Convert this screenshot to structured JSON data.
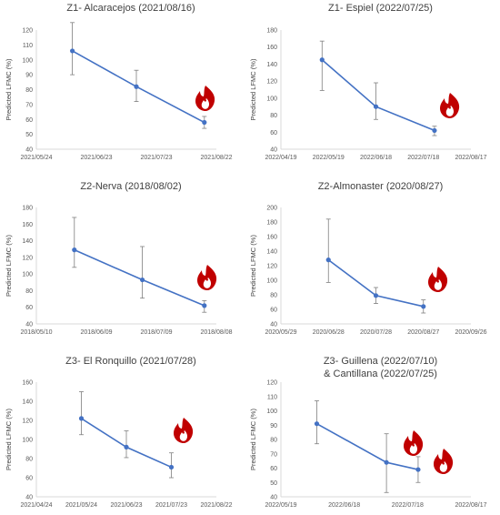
{
  "chart_data": [
    {
      "type": "line",
      "title": "Z1- Alcaracejos (2021/08/16)",
      "ylabel": "Predicted LFMC (%)",
      "xlim": [
        "2021-05-24",
        "2021-08-22"
      ],
      "xticks": [
        "2021/05/24",
        "2021/06/23",
        "2021/07/23",
        "2021/08/22"
      ],
      "ylim": [
        40,
        120
      ],
      "yticks": [
        40,
        50,
        60,
        70,
        80,
        90,
        100,
        110,
        120
      ],
      "x": [
        "2021-06-11",
        "2021-07-13",
        "2021-08-16"
      ],
      "values": [
        106,
        82,
        58
      ],
      "err_low": [
        90,
        72,
        54
      ],
      "err_high": [
        125,
        93,
        62
      ],
      "fire_icons": [
        "fire-icon"
      ],
      "colors": {
        "series": "#4472c4",
        "fire": "#c00000"
      }
    },
    {
      "type": "line",
      "title": "Z1- Espiel (2022/07/25)",
      "ylabel": "Predicted LFMC (%)",
      "xlim": [
        "2022-04-19",
        "2022-08-17"
      ],
      "xticks": [
        "2022/04/19",
        "2022/05/19",
        "2022/06/18",
        "2022/07/18",
        "2022/08/17"
      ],
      "ylim": [
        40,
        180
      ],
      "yticks": [
        40,
        60,
        80,
        100,
        120,
        140,
        160,
        180
      ],
      "x": [
        "2022-05-15",
        "2022-06-18",
        "2022-07-25"
      ],
      "values": [
        145,
        90,
        62
      ],
      "err_low": [
        109,
        75,
        56
      ],
      "err_high": [
        167,
        118,
        67
      ],
      "fire_icons": [
        "fire-icon"
      ],
      "colors": {
        "series": "#4472c4",
        "fire": "#c00000"
      }
    },
    {
      "type": "line",
      "title": "Z2-Nerva (2018/08/02)",
      "ylabel": "Predicted LFMC (%)",
      "xlim": [
        "2018-05-10",
        "2018-08-08"
      ],
      "xticks": [
        "2018/05/10",
        "2018/06/09",
        "2018/07/09",
        "2018/08/08"
      ],
      "ylim": [
        40,
        180
      ],
      "yticks": [
        40,
        60,
        80,
        100,
        120,
        140,
        160,
        180
      ],
      "x": [
        "2018-05-29",
        "2018-07-02",
        "2018-08-02"
      ],
      "values": [
        129,
        93,
        62
      ],
      "err_low": [
        108,
        71,
        54
      ],
      "err_high": [
        168,
        133,
        68
      ],
      "fire_icons": [
        "fire-icon"
      ],
      "colors": {
        "series": "#4472c4",
        "fire": "#c00000"
      }
    },
    {
      "type": "line",
      "title": "Z2-Almonaster (2020/08/27)",
      "ylabel": "Predicted LFMC (%)",
      "xlim": [
        "2020-05-29",
        "2020-09-26"
      ],
      "xticks": [
        "2020/05/29",
        "2020/06/28",
        "2020/07/28",
        "2020/08/27",
        "2020/09/26"
      ],
      "ylim": [
        40,
        200
      ],
      "yticks": [
        40,
        60,
        80,
        100,
        120,
        140,
        160,
        180,
        200
      ],
      "x": [
        "2020-06-28",
        "2020-07-28",
        "2020-08-27"
      ],
      "values": [
        128,
        79,
        64
      ],
      "err_low": [
        97,
        68,
        55
      ],
      "err_high": [
        184,
        90,
        73
      ],
      "fire_icons": [
        "fire-icon"
      ],
      "colors": {
        "series": "#4472c4",
        "fire": "#c00000"
      }
    },
    {
      "type": "line",
      "title": "Z3- El Ronquillo (2021/07/28)",
      "ylabel": "Predicted LFMC (%)",
      "xlim": [
        "2021-04-24",
        "2021-08-22"
      ],
      "xticks": [
        "2021/04/24",
        "2021/05/24",
        "2021/06/23",
        "2021/07/23",
        "2021/08/22"
      ],
      "ylim": [
        40,
        160
      ],
      "yticks": [
        40,
        60,
        80,
        100,
        120,
        140,
        160
      ],
      "x": [
        "2021-05-24",
        "2021-06-23",
        "2021-07-23"
      ],
      "values": [
        122,
        92,
        71
      ],
      "err_low": [
        105,
        81,
        60
      ],
      "err_high": [
        150,
        109,
        86
      ],
      "fire_icons": [
        "fire-icon"
      ],
      "colors": {
        "series": "#4472c4",
        "fire": "#c00000"
      }
    },
    {
      "type": "line",
      "title": "Z3- Guillena (2022/07/10)",
      "title2": "& Cantillana (2022/07/25)",
      "ylabel": "Predicted LFMC (%)",
      "xlim": [
        "2022-05-19",
        "2022-08-17"
      ],
      "xticks": [
        "2022/05/19",
        "2022/06/18",
        "2022/07/18",
        "2022/08/17"
      ],
      "ylim": [
        40,
        120
      ],
      "yticks": [
        40,
        50,
        60,
        70,
        80,
        90,
        100,
        110,
        120
      ],
      "x": [
        "2022-06-05",
        "2022-07-08",
        "2022-07-23"
      ],
      "values": [
        91,
        64,
        59
      ],
      "err_low": [
        77,
        43,
        50
      ],
      "err_high": [
        107,
        84,
        68
      ],
      "fire_icons": [
        "fire-icon",
        "fire-icon"
      ],
      "colors": {
        "series": "#4472c4",
        "fire": "#c00000"
      }
    }
  ]
}
